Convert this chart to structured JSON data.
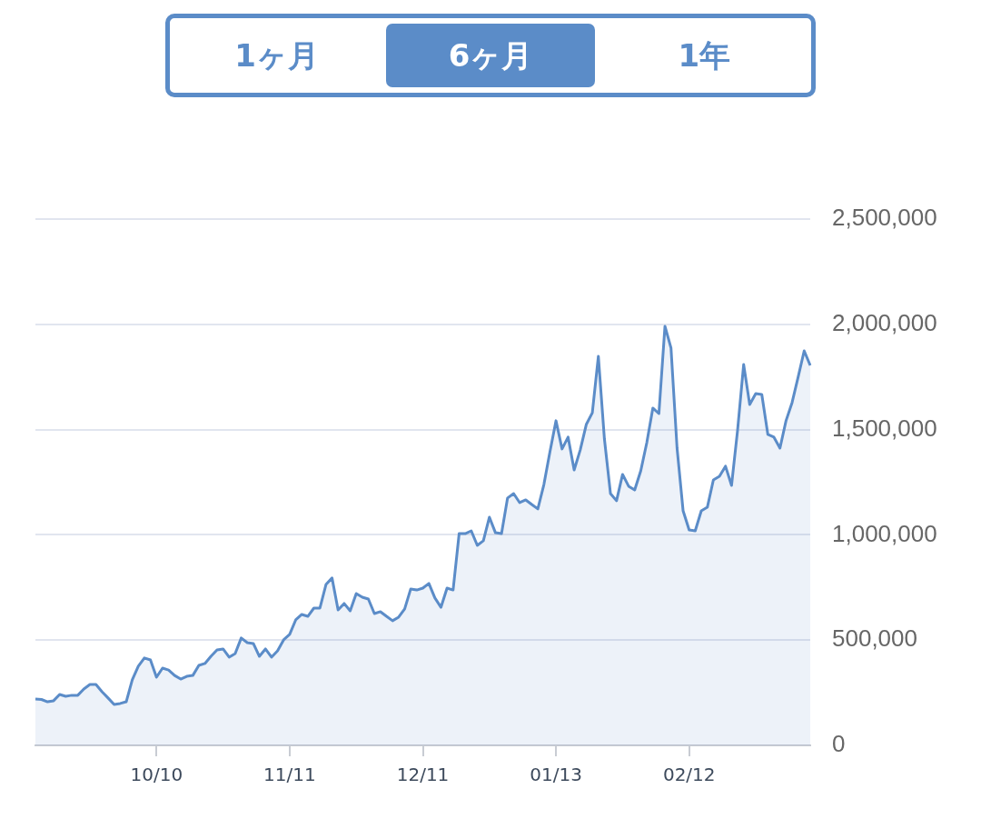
{
  "chart_data": {
    "type": "area",
    "annotations": [
      "1ヶ月",
      "6ヶ月",
      "1年"
    ],
    "categories": [
      null,
      null,
      null,
      null,
      null,
      null,
      null,
      null,
      null,
      null,
      null,
      null,
      null,
      null,
      null,
      null,
      null,
      null,
      null,
      null,
      "10/10",
      null,
      null,
      null,
      null,
      null,
      null,
      null,
      null,
      null,
      null,
      null,
      null,
      null,
      null,
      null,
      null,
      null,
      null,
      null,
      null,
      null,
      "11/11",
      null,
      null,
      null,
      null,
      null,
      null,
      null,
      null,
      null,
      null,
      null,
      null,
      null,
      null,
      null,
      null,
      null,
      null,
      null,
      null,
      null,
      "12/11",
      null,
      null,
      null,
      null,
      null,
      null,
      null,
      null,
      null,
      null,
      null,
      null,
      null,
      null,
      null,
      null,
      null,
      null,
      null,
      null,
      null,
      "01/13",
      null,
      null,
      null,
      null,
      null,
      null,
      null,
      null,
      null,
      null,
      null,
      null,
      null,
      null,
      null,
      null,
      null,
      null,
      null,
      null,
      null,
      "02/12",
      null,
      null,
      null,
      null,
      null,
      null,
      null,
      null,
      null,
      null,
      null,
      null,
      null,
      null,
      null,
      null,
      null,
      null,
      null,
      null
    ],
    "series": [
      {
        "color": "#5b8cc8",
        "values": [
          220000,
          218000,
          207000,
          212000,
          242000,
          233000,
          238000,
          238000,
          268000,
          289000,
          289000,
          255000,
          225000,
          194000,
          199000,
          207000,
          311000,
          376000,
          415000,
          406000,
          324000,
          367000,
          358000,
          332000,
          315000,
          328000,
          332000,
          380000,
          389000,
          423000,
          453000,
          458000,
          419000,
          436000,
          510000,
          488000,
          484000,
          423000,
          458000,
          419000,
          449000,
          501000,
          527000,
          596000,
          622000,
          613000,
          652000,
          652000,
          764000,
          795000,
          643000,
          674000,
          639000,
          721000,
          704000,
          695000,
          626000,
          635000,
          613000,
          592000,
          609000,
          648000,
          743000,
          738000,
          747000,
          769000,
          700000,
          656000,
          747000,
          738000,
          1006000,
          1006000,
          1019000,
          950000,
          972000,
          1084000,
          1010000,
          1006000,
          1175000,
          1196000,
          1153000,
          1166000,
          1144000,
          1123000,
          1239000,
          1395000,
          1542000,
          1408000,
          1464000,
          1308000,
          1403000,
          1524000,
          1580000,
          1848000,
          1455000,
          1196000,
          1162000,
          1287000,
          1231000,
          1213000,
          1304000,
          1438000,
          1602000,
          1576000,
          1991000,
          1887000,
          1412000,
          1114000,
          1023000,
          1019000,
          1114000,
          1131000,
          1261000,
          1278000,
          1326000,
          1235000,
          1498000,
          1809000,
          1619000,
          1671000,
          1667000,
          1477000,
          1464000,
          1412000,
          1542000,
          1628000,
          1749000,
          1874000,
          1805000
        ]
      }
    ],
    "ylim": [
      0,
      2500000
    ],
    "yticks": [
      0,
      {
        "value": 500000,
        "label": "500,000"
      },
      {
        "value": 1000000,
        "label": "1,000,000"
      },
      {
        "value": 1500000,
        "label": "1,500,000"
      },
      {
        "value": 2000000,
        "label": "2,000,000"
      },
      {
        "value": 2500000,
        "label": "2,500,000"
      }
    ],
    "grid": "y",
    "legend": false,
    "marker": "none"
  }
}
